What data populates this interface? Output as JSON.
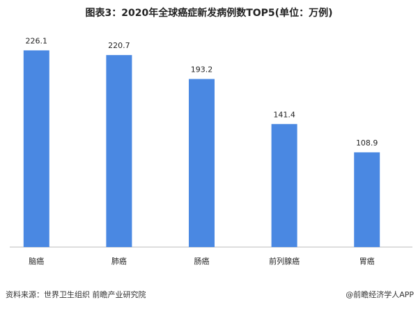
{
  "chart_data": {
    "type": "bar",
    "title": "图表3：2020年全球癌症新发病例数TOP5(单位：万例)",
    "categories": [
      "脑癌",
      "肺癌",
      "肠癌",
      "前列腺癌",
      "胃癌"
    ],
    "values": [
      226.1,
      220.7,
      193.2,
      141.4,
      108.9
    ],
    "color": "#4a88e2",
    "ylim": [
      0,
      240
    ]
  },
  "footer": {
    "source": "资料来源：世界卫生组织 前瞻产业研究院",
    "brand": "@前瞻经济学人APP"
  }
}
